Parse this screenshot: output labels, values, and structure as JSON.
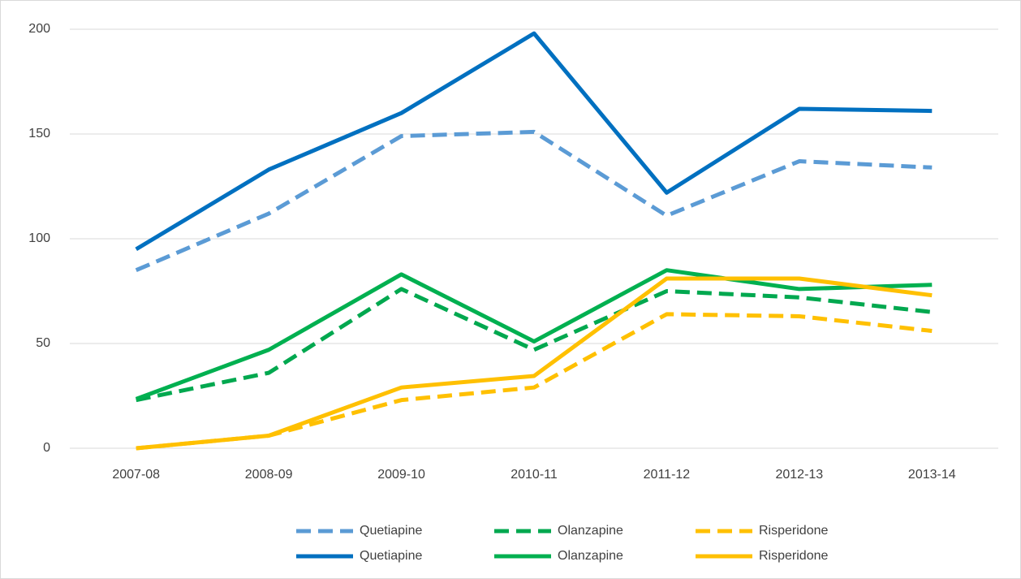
{
  "chart_data": {
    "type": "line",
    "categories": [
      "2007-08",
      "2008-09",
      "2009-10",
      "2010-11",
      "2011-12",
      "2012-13",
      "2013-14"
    ],
    "series": [
      {
        "name": "Quetiapine",
        "color": "#5b9bd5",
        "dash": true,
        "values": [
          85,
          112,
          149,
          151,
          111,
          137,
          134
        ]
      },
      {
        "name": "Olanzapine",
        "color": "#00a84f",
        "dash": true,
        "values": [
          23,
          36,
          76,
          47,
          75,
          72,
          65
        ]
      },
      {
        "name": "Risperidone",
        "color": "#ffc000",
        "dash": true,
        "values": [
          0,
          6,
          23,
          29,
          64,
          63,
          56
        ]
      },
      {
        "name": "Quetiapine",
        "color": "#0070c0",
        "dash": false,
        "values": [
          95,
          133,
          160,
          198,
          122,
          162,
          161
        ]
      },
      {
        "name": "Olanzapine",
        "color": "#00b050",
        "dash": false,
        "values": [
          23.5,
          47,
          83,
          51,
          85,
          76,
          78
        ]
      },
      {
        "name": "Risperidone",
        "color": "#ffc000",
        "dash": false,
        "values": [
          0,
          6,
          29,
          34.5,
          81,
          81,
          73
        ]
      }
    ],
    "ylim": [
      0,
      200
    ],
    "yticks": [
      0,
      50,
      100,
      150,
      200
    ],
    "grid": true,
    "legend": "bottom"
  }
}
